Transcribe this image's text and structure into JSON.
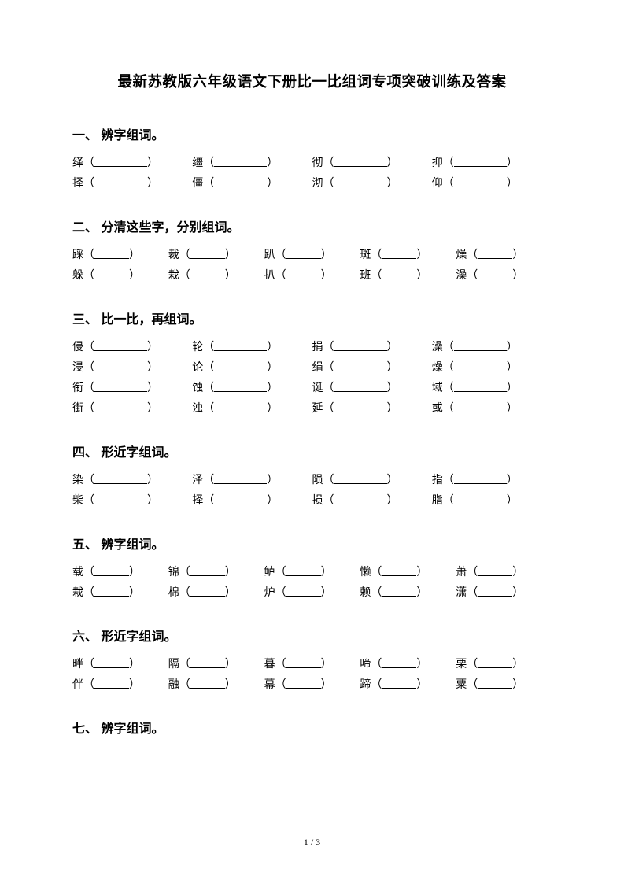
{
  "title": "最新苏教版六年级语文下册比一比组词专项突破训练及答案",
  "sections": [
    {
      "heading": "一、 辨字组词。",
      "cols": 4,
      "blankWidth": 67,
      "rows": [
        [
          "绎",
          "缰",
          "彻",
          "抑"
        ],
        [
          "择",
          "僵",
          "沏",
          "仰"
        ]
      ]
    },
    {
      "heading": "二、 分清这些字，分别组词。",
      "cols": 5,
      "blankWidth": 44,
      "rows": [
        [
          "踩",
          "裁",
          "趴",
          "斑",
          "燥"
        ],
        [
          "躲",
          "栽",
          "扒",
          "班",
          "澡"
        ]
      ]
    },
    {
      "heading": "三、 比一比，再组词。",
      "cols": 4,
      "blankWidth": 67,
      "rows": [
        [
          "侵",
          "轮",
          "捐",
          "澡"
        ],
        [
          "浸",
          "论",
          "绢",
          "燥"
        ],
        [
          "衔",
          "蚀",
          "诞",
          "域"
        ],
        [
          "街",
          "浊",
          "延",
          "或"
        ]
      ]
    },
    {
      "heading": "四、 形近字组词。",
      "cols": 4,
      "blankWidth": 67,
      "rows": [
        [
          "染",
          "泽",
          "陨",
          "指"
        ],
        [
          "柴",
          "择",
          "损",
          "脂"
        ]
      ]
    },
    {
      "heading": "五、 辨字组词。",
      "cols": 5,
      "blankWidth": 44,
      "rows": [
        [
          "载",
          "锦",
          "鲈",
          "懒",
          "萧"
        ],
        [
          "栽",
          "棉",
          "炉",
          "赖",
          "潇"
        ]
      ]
    },
    {
      "heading": "六、 形近字组词。",
      "cols": 5,
      "blankWidth": 44,
      "rows": [
        [
          "畔",
          "隔",
          "暮",
          "啼",
          "栗"
        ],
        [
          "伴",
          "融",
          "幕",
          "蹄",
          "粟"
        ]
      ]
    },
    {
      "heading": "七、 辨字组词。",
      "cols": 0,
      "blankWidth": 0,
      "rows": []
    }
  ],
  "footer": "1 / 3",
  "style": {
    "pageWidth": 793,
    "pageHeight": 1122,
    "titleFontSize": 18.5,
    "headingFontSize": 16,
    "bodyFontSize": 14,
    "lineHeight": 26,
    "textColor": "#000000",
    "backgroundColor": "#ffffff",
    "blankBorderColor": "#000000"
  }
}
